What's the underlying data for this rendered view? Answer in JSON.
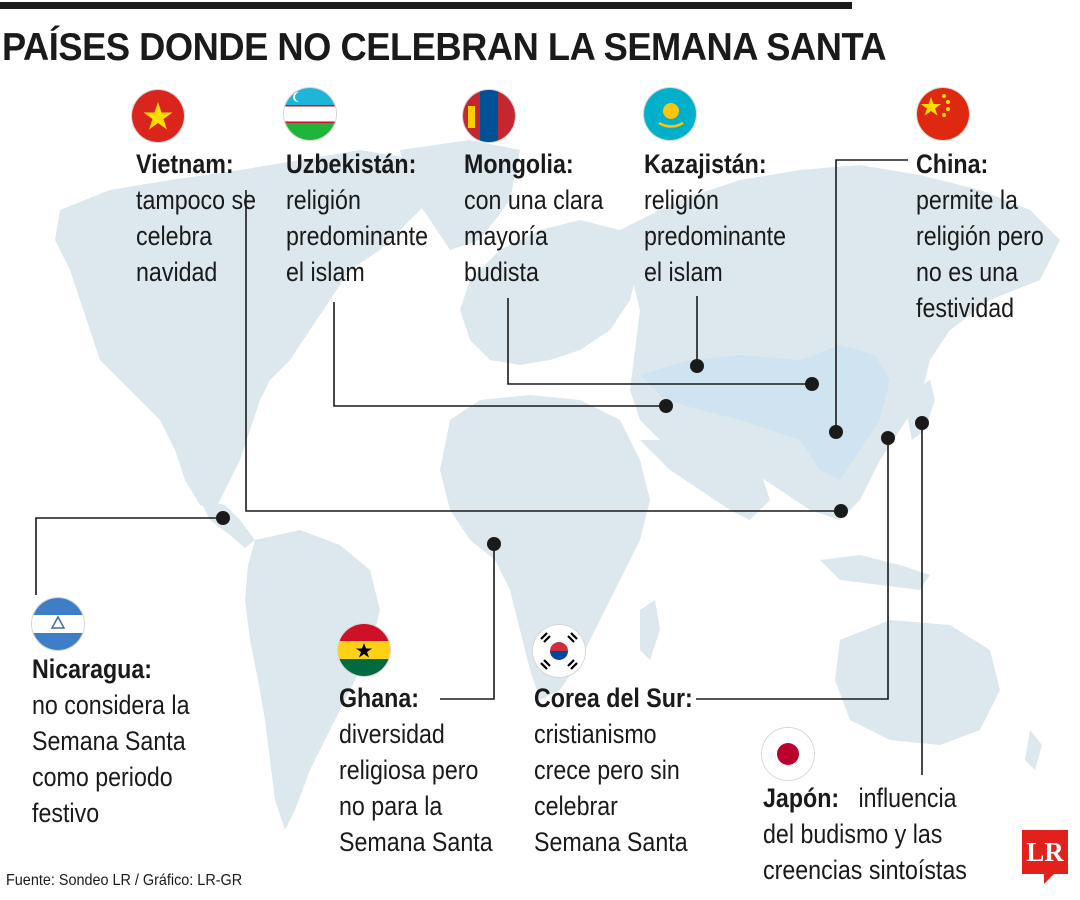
{
  "title": "PAÍSES DONDE NO CELEBRAN LA SEMANA SANTA",
  "source": "Fuente: Sondeo LR / Gráfico: LR-GR",
  "logo": "LR",
  "colors": {
    "land": "#dde8ee",
    "highlight": "#cfe4f0",
    "line": "#1a1a1a",
    "accent": "#e2201c"
  },
  "countries": {
    "vietnam": {
      "name": "Vietnam:",
      "lines": [
        "tampoco se",
        "celebra",
        "navidad"
      ],
      "flag": "vietnam-flag-icon"
    },
    "uzbekistan": {
      "name": "Uzbekistán:",
      "lines": [
        "religión",
        "predominante",
        "el islam"
      ],
      "flag": "uzbekistan-flag-icon"
    },
    "mongolia": {
      "name": "Mongolia:",
      "lines": [
        "con una clara",
        "mayoría",
        "budista"
      ],
      "flag": "mongolia-flag-icon"
    },
    "kazakhstan": {
      "name": "Kazajistán:",
      "lines": [
        "religión",
        "predominante",
        "el islam"
      ],
      "flag": "kazakhstan-flag-icon"
    },
    "china": {
      "name": "China:",
      "lines": [
        "permite la",
        "religión pero",
        "no es una",
        "festividad"
      ],
      "flag": "china-flag-icon"
    },
    "nicaragua": {
      "name": "Nicaragua:",
      "lines": [
        "no considera la",
        "Semana Santa",
        "como periodo",
        "festivo"
      ],
      "flag": "nicaragua-flag-icon"
    },
    "ghana": {
      "name": "Ghana:",
      "lines": [
        "diversidad",
        "religiosa pero",
        "no para la",
        "Semana Santa"
      ],
      "flag": "ghana-flag-icon"
    },
    "korea": {
      "name": "Corea del Sur:",
      "lines": [
        "cristianismo",
        "crece pero sin",
        "celebrar",
        "Semana Santa"
      ],
      "flag": "south-korea-flag-icon"
    },
    "japan": {
      "name": "Japón:",
      "lines": [
        "influencia",
        "del budismo y las",
        "creencias sintoístas"
      ],
      "flag": "japan-flag-icon"
    }
  }
}
